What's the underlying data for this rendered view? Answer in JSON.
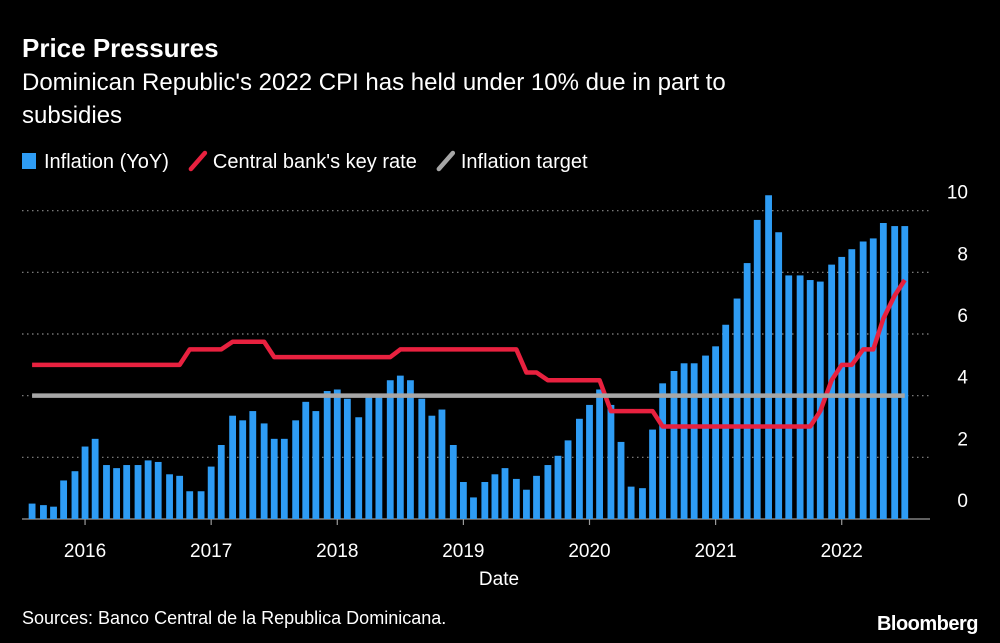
{
  "chart_data": {
    "type": "bar",
    "title": "Price Pressures",
    "subtitle": [
      "Dominican Republic's 2022 CPI has held under 10% due in part to",
      "subsidies"
    ],
    "x_label": "Date",
    "source": "Sources: Banco Central de la Republica Dominicana.",
    "brand": "Bloomberg",
    "x": [
      2015.58,
      2015.67,
      2015.75,
      2015.83,
      2015.92,
      2016,
      2016.08,
      2016.17,
      2016.25,
      2016.33,
      2016.42,
      2016.5,
      2016.58,
      2016.67,
      2016.75,
      2016.83,
      2016.92,
      2017,
      2017.08,
      2017.17,
      2017.25,
      2017.33,
      2017.42,
      2017.5,
      2017.58,
      2017.67,
      2017.75,
      2017.83,
      2017.92,
      2018,
      2018.08,
      2018.17,
      2018.25,
      2018.33,
      2018.42,
      2018.5,
      2018.58,
      2018.67,
      2018.75,
      2018.83,
      2018.92,
      2019,
      2019.08,
      2019.17,
      2019.25,
      2019.33,
      2019.42,
      2019.5,
      2019.58,
      2019.67,
      2019.75,
      2019.83,
      2019.92,
      2020,
      2020.08,
      2020.17,
      2020.25,
      2020.33,
      2020.42,
      2020.5,
      2020.58,
      2020.67,
      2020.75,
      2020.83,
      2020.92,
      2021,
      2021.08,
      2021.17,
      2021.25,
      2021.33,
      2021.42,
      2021.5,
      2021.58,
      2021.67,
      2021.75,
      2021.83,
      2021.92,
      2022,
      2022.08,
      2022.17,
      2022.25,
      2022.33,
      2022.42,
      2022.5
    ],
    "series": [
      {
        "name": "Inflation (YoY)",
        "type": "bar",
        "color": "#2e9cf4",
        "values": [
          0.5,
          0.45,
          0.4,
          1.25,
          1.55,
          2.35,
          2.6,
          1.75,
          1.65,
          1.75,
          1.75,
          1.9,
          1.85,
          1.45,
          1.4,
          0.9,
          0.9,
          1.7,
          2.4,
          3.35,
          3.2,
          3.5,
          3.1,
          2.6,
          2.6,
          3.2,
          3.8,
          3.5,
          4.15,
          4.2,
          3.9,
          3.3,
          4.0,
          4.0,
          4.5,
          4.65,
          4.5,
          3.9,
          3.35,
          3.55,
          2.4,
          1.2,
          0.7,
          1.2,
          1.45,
          1.65,
          1.3,
          0.95,
          1.4,
          1.75,
          2.05,
          2.55,
          3.25,
          3.7,
          4.2,
          3.7,
          2.5,
          1.05,
          1.0,
          2.9,
          4.4,
          4.8,
          5.05,
          5.05,
          5.3,
          5.6,
          6.3,
          7.15,
          8.3,
          9.7,
          10.5,
          9.3,
          7.9,
          7.9,
          7.75,
          7.7,
          8.25,
          8.5,
          8.75,
          9.0,
          9.1,
          9.6,
          9.5,
          9.5
        ]
      },
      {
        "name": "Central bank's key rate",
        "type": "line",
        "color": "#e8213f",
        "values": [
          5,
          5,
          5,
          5,
          5,
          5,
          5,
          5,
          5,
          5,
          5,
          5,
          5,
          5,
          5,
          5.5,
          5.5,
          5.5,
          5.5,
          5.75,
          5.75,
          5.75,
          5.75,
          5.25,
          5.25,
          5.25,
          5.25,
          5.25,
          5.25,
          5.25,
          5.25,
          5.25,
          5.25,
          5.25,
          5.25,
          5.5,
          5.5,
          5.5,
          5.5,
          5.5,
          5.5,
          5.5,
          5.5,
          5.5,
          5.5,
          5.5,
          5.5,
          4.75,
          4.75,
          4.5,
          4.5,
          4.5,
          4.5,
          4.5,
          4.5,
          3.5,
          3.5,
          3.5,
          3.5,
          3.5,
          3,
          3,
          3,
          3,
          3,
          3,
          3,
          3,
          3,
          3,
          3,
          3,
          3,
          3,
          3,
          3.5,
          4.5,
          5,
          5,
          5.5,
          5.5,
          6.5,
          7.25,
          7.75
        ]
      },
      {
        "name": "Inflation target",
        "type": "line",
        "color": "#a6a6a6",
        "values": [
          4,
          4,
          4,
          4,
          4,
          4,
          4,
          4,
          4,
          4,
          4,
          4,
          4,
          4,
          4,
          4,
          4,
          4,
          4,
          4,
          4,
          4,
          4,
          4,
          4,
          4,
          4,
          4,
          4,
          4,
          4,
          4,
          4,
          4,
          4,
          4,
          4,
          4,
          4,
          4,
          4,
          4,
          4,
          4,
          4,
          4,
          4,
          4,
          4,
          4,
          4,
          4,
          4,
          4,
          4,
          4,
          4,
          4,
          4,
          4,
          4,
          4,
          4,
          4,
          4,
          4,
          4,
          4,
          4,
          4,
          4,
          4,
          4,
          4,
          4,
          4,
          4,
          4,
          4,
          4,
          4,
          4,
          4,
          4
        ]
      }
    ],
    "xlim": [
      2015.5,
      2022.7
    ],
    "xticks": [
      2016,
      2017,
      2018,
      2019,
      2020,
      2021,
      2022
    ],
    "ylim": [
      0,
      10.8
    ],
    "yticks": [
      0,
      2,
      4,
      6,
      8,
      10
    ],
    "y_axis_side": "right",
    "grid": true
  }
}
